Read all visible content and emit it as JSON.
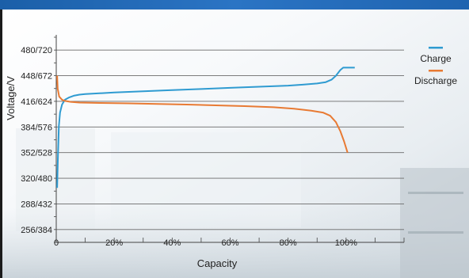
{
  "chart_data": {
    "type": "line",
    "xlabel": "Capacity",
    "ylabel": "Voltage/V",
    "x_ticks": [
      "0",
      "20%",
      "40%",
      "60%",
      "80%",
      "100%"
    ],
    "x_tick_values": [
      0,
      20,
      40,
      60,
      80,
      100
    ],
    "xlim": [
      0,
      120
    ],
    "y_ticks": [
      "256/384",
      "288/432",
      "320/480",
      "352/528",
      "384/576",
      "416/624",
      "448/672",
      "480/720"
    ],
    "y_tick_values": [
      256,
      288,
      320,
      352,
      384,
      416,
      448,
      480
    ],
    "ylim": [
      240,
      496
    ],
    "grid": "horizontal",
    "legend_position": "right",
    "series": [
      {
        "name": "Charge",
        "color": "#2f9bd1",
        "points": [
          [
            0.3,
            308
          ],
          [
            0.6,
            350
          ],
          [
            0.9,
            385
          ],
          [
            1.3,
            402
          ],
          [
            2,
            412
          ],
          [
            3,
            418
          ],
          [
            4.5,
            421
          ],
          [
            6,
            423
          ],
          [
            8,
            424.3
          ],
          [
            10,
            425
          ],
          [
            20,
            427
          ],
          [
            30,
            428.6
          ],
          [
            40,
            430
          ],
          [
            50,
            431.4
          ],
          [
            60,
            432.8
          ],
          [
            70,
            434.2
          ],
          [
            80,
            435.6
          ],
          [
            85,
            436.8
          ],
          [
            90,
            438.3
          ],
          [
            93,
            440
          ],
          [
            95,
            443
          ],
          [
            96.5,
            448
          ],
          [
            98,
            455
          ],
          [
            99,
            458
          ],
          [
            103,
            458
          ]
        ]
      },
      {
        "name": "Discharge",
        "color": "#e87a33",
        "points": [
          [
            0.3,
            448
          ],
          [
            0.5,
            432
          ],
          [
            1,
            422
          ],
          [
            2,
            418
          ],
          [
            3,
            416.5
          ],
          [
            5,
            415.3
          ],
          [
            8,
            414.5
          ],
          [
            15,
            414
          ],
          [
            25,
            413.5
          ],
          [
            35,
            412.8
          ],
          [
            45,
            412
          ],
          [
            55,
            411
          ],
          [
            65,
            410
          ],
          [
            75,
            408.6
          ],
          [
            82,
            406.8
          ],
          [
            88,
            404.3
          ],
          [
            92,
            402
          ],
          [
            94.5,
            398
          ],
          [
            96.5,
            390
          ],
          [
            98,
            379
          ],
          [
            99.3,
            366
          ],
          [
            100,
            358
          ],
          [
            100.5,
            352
          ]
        ]
      }
    ]
  }
}
